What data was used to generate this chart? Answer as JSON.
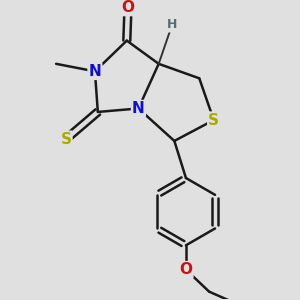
{
  "background_color": "#e0e0e0",
  "atom_colors": {
    "C": "#1a1a1a",
    "N": "#1010cc",
    "O": "#cc1010",
    "S": "#aaaa00",
    "H": "#507070"
  },
  "bond_color": "#1a1a1a",
  "bond_width": 1.8
}
